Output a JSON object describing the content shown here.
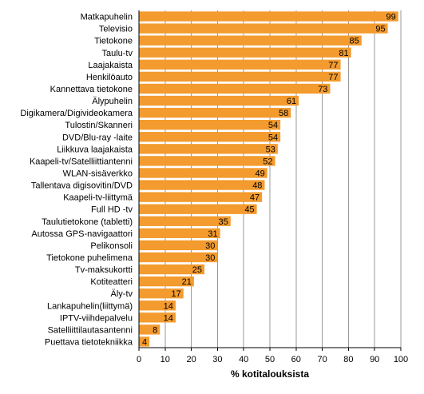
{
  "chart_data": {
    "type": "bar",
    "orientation": "horizontal",
    "categories": [
      "Matkapuhelin",
      "Televisio",
      "Tietokone",
      "Taulu-tv",
      "Laajakaista",
      "Henkilöauto",
      "Kannettava tietokone",
      "Älypuhelin",
      "Digikamera/Digivideokamera",
      "Tulostin/Skanneri",
      "DVD/Blu-ray -laite",
      "Liikkuva laajakaista",
      "Kaapeli-tv/Satelliittiantenni",
      "WLAN-sisäverkko",
      "Tallentava digisovitin/DVD",
      "Kaapeli-tv-liittymä",
      "Full HD -tv",
      "Taulutietokone (tabletti)",
      "Autossa GPS-navigaattori",
      "Pelikonsoli",
      "Tietokone puhelimena",
      "Tv-maksukortti",
      "Kotiteatteri",
      "Äly-tv",
      "Lankapuhelin(liittymä)",
      "IPTV-viihdepalvelu",
      "Satelliittilautasantenni",
      "Puettava tietotekniikka"
    ],
    "values": [
      99,
      95,
      85,
      81,
      77,
      77,
      73,
      61,
      58,
      54,
      54,
      53,
      52,
      49,
      48,
      47,
      45,
      35,
      31,
      30,
      30,
      25,
      21,
      17,
      14,
      14,
      8,
      4
    ],
    "xlabel": "% kotitalouksista",
    "xlim": [
      0,
      100
    ],
    "xticks": [
      0,
      10,
      20,
      30,
      40,
      50,
      60,
      70,
      80,
      90,
      100
    ],
    "grid": true,
    "bar_color": "#F39B2E",
    "grid_color": "#9a9a9a"
  }
}
